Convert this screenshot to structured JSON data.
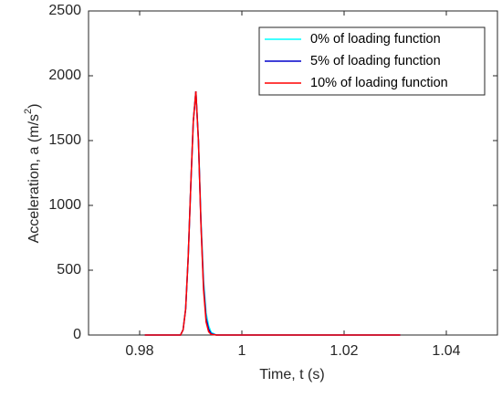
{
  "chart_data": {
    "type": "line",
    "xlabel": "Time, t (s)",
    "ylabel": "Acceleration, a (m/s",
    "ylabel_sup": "2",
    "ylabel_end": ")",
    "x": [
      0.981,
      0.988,
      0.9885,
      0.989,
      0.9895,
      0.99,
      0.9905,
      0.991,
      0.9915,
      0.992,
      0.9925,
      0.993,
      0.9935,
      0.994,
      0.995,
      1.031
    ],
    "series": [
      {
        "name": "0% of loading function",
        "color": "#00ffff",
        "values": [
          0,
          0,
          40,
          200,
          600,
          1150,
          1650,
          1880,
          1510,
          880,
          420,
          170,
          70,
          20,
          0,
          0
        ]
      },
      {
        "name": "5% of loading function",
        "color": "#0000cc",
        "values": [
          0,
          0,
          40,
          200,
          600,
          1150,
          1650,
          1880,
          1500,
          860,
          380,
          130,
          45,
          10,
          0,
          0
        ]
      },
      {
        "name": "10% of loading function",
        "color": "#ff0000",
        "values": [
          0,
          0,
          40,
          200,
          600,
          1150,
          1650,
          1880,
          1500,
          850,
          350,
          100,
          25,
          5,
          0,
          0
        ]
      }
    ],
    "xlim": [
      0.97,
      1.05
    ],
    "xticks": [
      0.98,
      1,
      1.02,
      1.04
    ],
    "ylim": [
      0,
      2500
    ],
    "yticks": [
      0,
      500,
      1000,
      1500,
      2000,
      2500
    ],
    "legend": "upper right"
  }
}
